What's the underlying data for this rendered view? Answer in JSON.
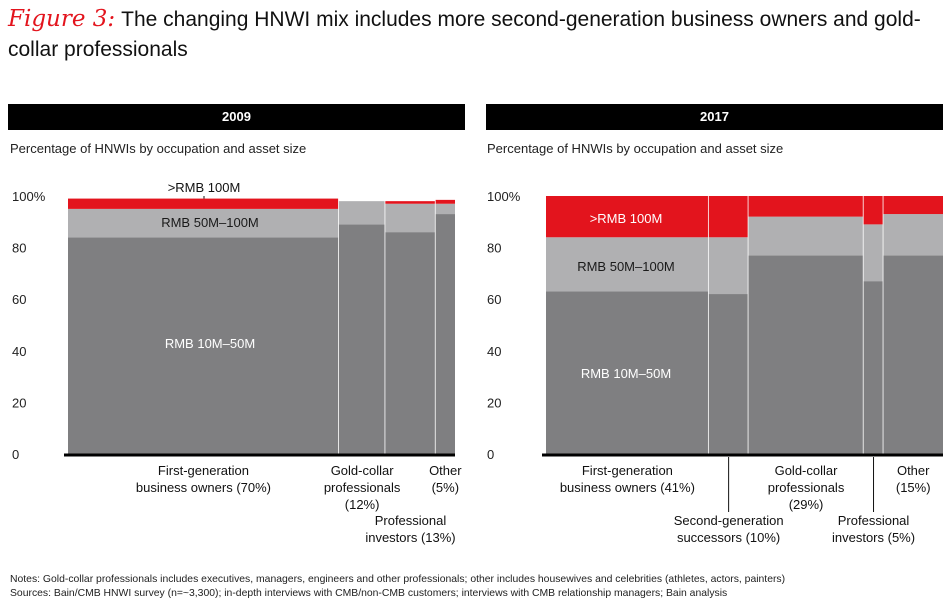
{
  "figure": {
    "label": "Figure 3:",
    "title": "The changing HNWI mix includes more second-generation business owners and gold-collar professionals"
  },
  "colors": {
    "tier_low": "#7f7f81",
    "tier_mid": "#b0b0b2",
    "tier_high": "#e3141d",
    "axis": "#000000"
  },
  "chart_data": [
    {
      "type": "marimekko",
      "panel_title": "2009",
      "subtitle": "Percentage of HNWIs by occupation and asset size",
      "y_ticks": [
        "100%",
        "80",
        "60",
        "40",
        "20",
        "0"
      ],
      "ylim": [
        0,
        100
      ],
      "tiers": [
        "RMB 10M–50M",
        "RMB 50M–100M",
        ">RMB 100M"
      ],
      "segments": [
        {
          "name": "First-generation business owners",
          "label_lines": [
            "First-generation",
            "business owners (70%)"
          ],
          "label_row": "upper",
          "width_pct": 70,
          "values": [
            84,
            11,
            4
          ]
        },
        {
          "name": "Gold-collar professionals",
          "label_lines": [
            "Gold-collar",
            "professionals",
            "(12%)"
          ],
          "label_row": "upper",
          "width_pct": 12,
          "values": [
            89,
            9,
            0
          ]
        },
        {
          "name": "Professional investors",
          "label_lines": [
            "Professional",
            "investors (13%)"
          ],
          "label_row": "lower",
          "width_pct": 13,
          "values": [
            86,
            11,
            1
          ]
        },
        {
          "name": "Other",
          "label_lines": [
            "Other",
            "(5%)"
          ],
          "label_row": "upper",
          "width_pct": 5,
          "values": [
            93,
            4,
            1.5
          ]
        }
      ]
    },
    {
      "type": "marimekko",
      "panel_title": "2017",
      "subtitle": "Percentage of HNWIs by occupation and asset size",
      "y_ticks": [
        "100%",
        "80",
        "60",
        "40",
        "20",
        "0"
      ],
      "ylim": [
        0,
        100
      ],
      "tiers": [
        "RMB 10M–50M",
        "RMB 50M–100M",
        ">RMB 100M"
      ],
      "segments": [
        {
          "name": "First-generation business owners",
          "label_lines": [
            "First-generation",
            "business owners (41%)"
          ],
          "label_row": "upper",
          "width_pct": 41,
          "values": [
            63,
            21,
            16
          ]
        },
        {
          "name": "Second-generation successors",
          "label_lines": [
            "Second-generation",
            "successors (10%)"
          ],
          "label_row": "lower",
          "width_pct": 10,
          "values": [
            62,
            22,
            16
          ]
        },
        {
          "name": "Gold-collar professionals",
          "label_lines": [
            "Gold-collar",
            "professionals",
            "(29%)"
          ],
          "label_row": "upper",
          "width_pct": 29,
          "values": [
            77,
            15,
            8
          ]
        },
        {
          "name": "Professional investors",
          "label_lines": [
            "Professional",
            "investors (5%)"
          ],
          "label_row": "lower",
          "width_pct": 5,
          "values": [
            67,
            22,
            11
          ]
        },
        {
          "name": "Other",
          "label_lines": [
            "Other",
            "(15%)"
          ],
          "label_row": "upper",
          "width_pct": 15,
          "values": [
            77,
            16,
            7
          ]
        }
      ]
    }
  ],
  "notes": {
    "notes_line": "Notes: Gold-collar professionals includes executives, managers, engineers and other professionals; other includes housewives and celebrities (athletes, actors, painters)",
    "sources_line": "Sources: Bain/CMB HNWI survey (n=~3,300); in-depth interviews with CMB/non-CMB customers; interviews with CMB relationship managers; Bain analysis"
  }
}
